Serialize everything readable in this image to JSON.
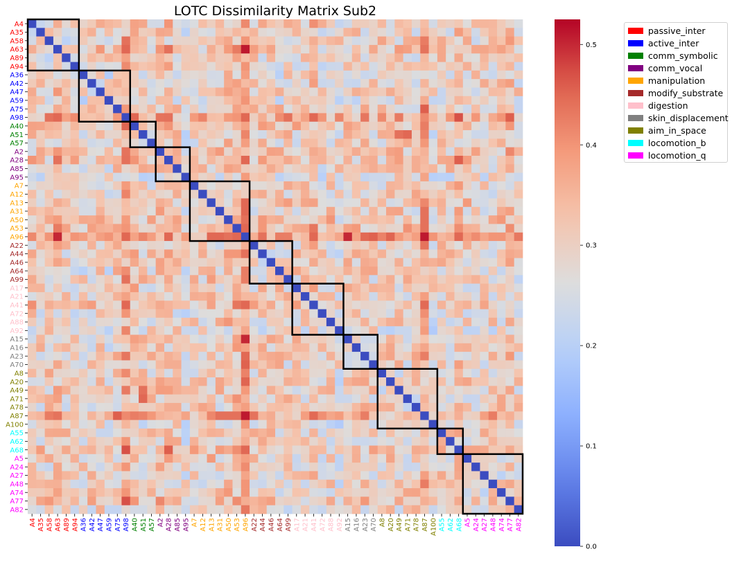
{
  "chart_data": {
    "type": "heatmap",
    "title": "LOTC Dissimilarity Matrix Sub2",
    "labels": [
      "A4",
      "A35",
      "A58",
      "A63",
      "A89",
      "A94",
      "A36",
      "A42",
      "A47",
      "A59",
      "A75",
      "A98",
      "A40",
      "A51",
      "A57",
      "A2",
      "A28",
      "A85",
      "A95",
      "A7",
      "A12",
      "A13",
      "A31",
      "A50",
      "A53",
      "A96",
      "A22",
      "A44",
      "A46",
      "A64",
      "A99",
      "A17",
      "A21",
      "A41",
      "A72",
      "A88",
      "A92",
      "A15",
      "A16",
      "A23",
      "A70",
      "A8",
      "A20",
      "A49",
      "A71",
      "A78",
      "A87",
      "A100",
      "A55",
      "A62",
      "A68",
      "A5",
      "A24",
      "A27",
      "A48",
      "A74",
      "A77",
      "A82"
    ],
    "groups": [
      {
        "name": "passive_inter",
        "color": "#ff0000",
        "start": 0,
        "size": 6
      },
      {
        "name": "active_inter",
        "color": "#0000ff",
        "start": 6,
        "size": 6
      },
      {
        "name": "comm_symbolic",
        "color": "#008000",
        "start": 12,
        "size": 3
      },
      {
        "name": "comm_vocal",
        "color": "#800080",
        "start": 15,
        "size": 4
      },
      {
        "name": "manipulation",
        "color": "#ffa500",
        "start": 19,
        "size": 7
      },
      {
        "name": "modify_substrate",
        "color": "#a52a2a",
        "start": 26,
        "size": 5
      },
      {
        "name": "digestion",
        "color": "#ffc0cb",
        "start": 31,
        "size": 6
      },
      {
        "name": "skin_displacement",
        "color": "#808080",
        "start": 37,
        "size": 4
      },
      {
        "name": "aim_in_space",
        "color": "#808000",
        "start": 41,
        "size": 7
      },
      {
        "name": "locomotion_b",
        "color": "#00ffff",
        "start": 48,
        "size": 3
      },
      {
        "name": "locomotion_q",
        "color": "#ff00ff",
        "start": 51,
        "size": 7
      }
    ],
    "colorbar": {
      "min": 0.0,
      "max": 0.525,
      "ticks": [
        0.0,
        0.1,
        0.2,
        0.3,
        0.4,
        0.5
      ],
      "tick_labels": [
        "0.0",
        "0.1",
        "0.2",
        "0.3",
        "0.4",
        "0.5"
      ],
      "colormap": "coolwarm"
    },
    "baseline_value": 0.3,
    "row_bias": {
      "A98": 0.06,
      "A96": 0.08,
      "A87": 0.06,
      "A41": 0.03,
      "A28": 0.02,
      "A53": 0.03,
      "A50": 0.02,
      "A2": 0.02,
      "A63": 0.02,
      "A13": 0.02,
      "A68": 0.02,
      "A77": 0.02,
      "A40": 0.02,
      "A95": -0.03,
      "A36": -0.02,
      "A59": -0.02,
      "A92": -0.02,
      "A100": -0.02,
      "A72": -0.01,
      "A82": -0.01
    },
    "hot_cells": [
      [
        "A63",
        "A96",
        0.51
      ],
      [
        "A15",
        "A96",
        0.5
      ],
      [
        "A87",
        "A96",
        0.51
      ],
      [
        "A98",
        "A68",
        0.47
      ],
      [
        "A98",
        "A77",
        0.46
      ],
      [
        "A98",
        "A63",
        0.45
      ],
      [
        "A98",
        "A58",
        0.44
      ],
      [
        "A98",
        "A28",
        0.44
      ],
      [
        "A98",
        "A99",
        0.44
      ],
      [
        "A96",
        "A68",
        0.45
      ],
      [
        "A96",
        "A28",
        0.45
      ],
      [
        "A96",
        "A87",
        0.51
      ],
      [
        "A96",
        "A41",
        0.45
      ],
      [
        "A96",
        "A63",
        0.5
      ],
      [
        "A96",
        "A15",
        0.5
      ],
      [
        "A68",
        "A98",
        0.47
      ],
      [
        "A68",
        "A28",
        0.46
      ],
      [
        "A77",
        "A98",
        0.47
      ],
      [
        "A28",
        "A68",
        0.46
      ],
      [
        "A28",
        "A63",
        0.44
      ],
      [
        "A75",
        "A87",
        0.46
      ],
      [
        "A87",
        "A75",
        0.46
      ],
      [
        "A51",
        "A71",
        0.45
      ],
      [
        "A49",
        "A51",
        0.44
      ],
      [
        "A87",
        "A50",
        0.44
      ],
      [
        "A87",
        "A31",
        0.44
      ],
      [
        "A87",
        "A53",
        0.44
      ],
      [
        "A41",
        "A98",
        0.45
      ],
      [
        "A58",
        "A98",
        0.44
      ],
      [
        "A13",
        "A96",
        0.45
      ],
      [
        "A31",
        "A96",
        0.45
      ],
      [
        "A53",
        "A96",
        0.45
      ],
      [
        "A99",
        "A98",
        0.44
      ],
      [
        "A50",
        "A96",
        0.44
      ],
      [
        "A44",
        "A96",
        0.44
      ]
    ]
  },
  "legend_items": [
    {
      "label": "passive_inter",
      "color": "#ff0000"
    },
    {
      "label": "active_inter",
      "color": "#0000ff"
    },
    {
      "label": "comm_symbolic",
      "color": "#008000"
    },
    {
      "label": "comm_vocal",
      "color": "#800080"
    },
    {
      "label": "manipulation",
      "color": "#ffa500"
    },
    {
      "label": "modify_substrate",
      "color": "#a52a2a"
    },
    {
      "label": "digestion",
      "color": "#ffc0cb"
    },
    {
      "label": "skin_displacement",
      "color": "#808080"
    },
    {
      "label": "aim_in_space",
      "color": "#808000"
    },
    {
      "label": "locomotion_b",
      "color": "#00ffff"
    },
    {
      "label": "locomotion_q",
      "color": "#ff00ff"
    }
  ]
}
